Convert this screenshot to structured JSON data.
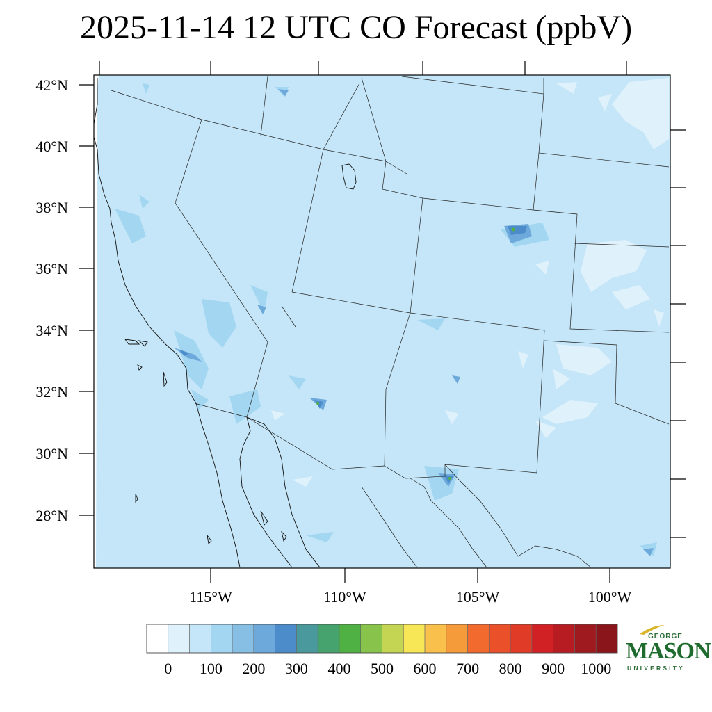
{
  "title": "2025-11-14 12 UTC CO Forecast (ppbV)",
  "map": {
    "lat_labels": [
      "42°N",
      "40°N",
      "38°N",
      "36°N",
      "34°N",
      "32°N",
      "30°N",
      "28°N"
    ],
    "lon_labels": [
      "115°W",
      "110°W",
      "105°W",
      "100°W"
    ],
    "base_color": "#c4e6f8",
    "light_patch_color": "#dff1fb",
    "mid_color": "#a3d6f1",
    "hotspot_color": "#4c8cca",
    "peak_color": "#4fb043"
  },
  "colorbar": {
    "labels": [
      "0",
      "100",
      "200",
      "300",
      "400",
      "500",
      "600",
      "700",
      "800",
      "900",
      "1000"
    ],
    "colors": [
      "#ffffff",
      "#dff1fb",
      "#c4e6f8",
      "#a3d6f1",
      "#87bfe4",
      "#6da9da",
      "#4c8cca",
      "#4a9a9d",
      "#46a36d",
      "#4fb043",
      "#88c44c",
      "#c3d553",
      "#f7e655",
      "#f9c04b",
      "#f69b3a",
      "#f26a2e",
      "#ea502a",
      "#e03b27",
      "#d12125",
      "#b71c22",
      "#9f1a1f",
      "#8a161b"
    ]
  },
  "logo": {
    "top": "GEORGE",
    "main": "MASON",
    "bottom": "UNIVERSITY",
    "green": "#1f6b2e",
    "gold": "#d8b52a"
  }
}
